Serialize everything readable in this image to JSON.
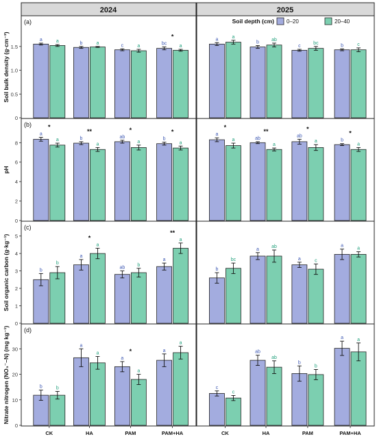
{
  "colors": {
    "s0_20": "#a3acdf",
    "s20_40": "#7ccfb0",
    "label_s0_20": "#3b56b2",
    "label_s20_40": "#1e9e7a",
    "strip_bg": "#d9d9d9",
    "panel_border": "#222222"
  },
  "columns": [
    "2024",
    "2025"
  ],
  "legend": {
    "title": "Soil depth (cm)",
    "items": [
      "0–20",
      "20–40"
    ]
  },
  "categories": [
    "CK",
    "HA",
    "PAM",
    "PAM+HA"
  ],
  "chart_data": [
    {
      "type": "bar",
      "panel": "(a)",
      "ylabel": "Soil bulk density (g·cm⁻³)",
      "ylim": [
        0,
        1.8
      ],
      "yticks": [
        0,
        0.5,
        1.0,
        1.5
      ],
      "ytick_labels": [
        "0",
        "0.5",
        "1.0",
        "1.5"
      ],
      "years": [
        {
          "year": "2024",
          "series": [
            {
              "name": "0–20",
              "values": [
                1.55,
                1.48,
                1.43,
                1.46
              ],
              "errors": [
                0.02,
                0.02,
                0.02,
                0.03
              ],
              "letters": [
                "a",
                "b",
                "c",
                "bc"
              ]
            },
            {
              "name": "20–40",
              "values": [
                1.52,
                1.49,
                1.41,
                1.42
              ],
              "errors": [
                0.02,
                0.01,
                0.03,
                0.02
              ],
              "letters": [
                "a",
                "a",
                "a",
                "a"
              ]
            }
          ],
          "stars": [
            "",
            "",
            "",
            "*"
          ]
        },
        {
          "year": "2025",
          "series": [
            {
              "name": "0–20",
              "values": [
                1.55,
                1.49,
                1.42,
                1.43
              ],
              "errors": [
                0.03,
                0.03,
                0.02,
                0.02
              ],
              "letters": [
                "a",
                "b",
                "c",
                "b"
              ]
            },
            {
              "name": "20–40",
              "values": [
                1.59,
                1.53,
                1.46,
                1.43
              ],
              "errors": [
                0.04,
                0.04,
                0.04,
                0.04
              ],
              "letters": [
                "a",
                "ab",
                "bc",
                "c"
              ]
            }
          ],
          "stars": [
            "",
            "",
            "",
            ""
          ]
        }
      ]
    },
    {
      "type": "bar",
      "panel": "(b)",
      "ylabel": "pH",
      "ylim": [
        0,
        9.5
      ],
      "yticks": [
        0,
        2,
        4,
        6,
        8
      ],
      "ytick_labels": [
        "0",
        "2",
        "4",
        "6",
        "8"
      ],
      "years": [
        {
          "year": "2024",
          "series": [
            {
              "name": "0–20",
              "values": [
                8.35,
                7.95,
                8.1,
                7.9
              ],
              "errors": [
                0.2,
                0.15,
                0.15,
                0.15
              ],
              "letters": [
                "a",
                "b",
                "ab",
                "b"
              ]
            },
            {
              "name": "20–40",
              "values": [
                7.75,
                7.3,
                7.5,
                7.45
              ],
              "errors": [
                0.2,
                0.2,
                0.25,
                0.2
              ],
              "letters": [
                "a",
                "a",
                "a",
                "a"
              ]
            }
          ],
          "stars": [
            "*",
            "**",
            "*",
            "*"
          ]
        },
        {
          "year": "2025",
          "series": [
            {
              "name": "0–20",
              "values": [
                8.3,
                8.0,
                8.1,
                7.8
              ],
              "errors": [
                0.2,
                0.1,
                0.25,
                0.1
              ],
              "letters": [
                "a",
                "ab",
                "ab",
                "b"
              ]
            },
            {
              "name": "20–40",
              "values": [
                7.7,
                7.3,
                7.5,
                7.3
              ],
              "errors": [
                0.25,
                0.15,
                0.3,
                0.2
              ],
              "letters": [
                "a",
                "a",
                "a",
                "a"
              ]
            }
          ],
          "stars": [
            "*",
            "**",
            "*",
            "*"
          ]
        }
      ]
    },
    {
      "type": "bar",
      "panel": "(c)",
      "ylabel": "Soil organic carbon (g·kg⁻¹)",
      "ylim": [
        0,
        5.3
      ],
      "yticks": [
        0,
        1,
        2,
        3,
        4,
        5
      ],
      "ytick_labels": [
        "0",
        "1",
        "2",
        "3",
        "4",
        "5"
      ],
      "years": [
        {
          "year": "2024",
          "series": [
            {
              "name": "0–20",
              "values": [
                2.5,
                3.35,
                2.8,
                3.25
              ],
              "errors": [
                0.35,
                0.3,
                0.2,
                0.2
              ],
              "letters": [
                "b",
                "a",
                "ab",
                "a"
              ]
            },
            {
              "name": "20–40",
              "values": [
                2.9,
                4.0,
                2.9,
                4.3
              ],
              "errors": [
                0.35,
                0.3,
                0.25,
                0.3
              ],
              "letters": [
                "b",
                "a",
                "b",
                "a"
              ]
            }
          ],
          "stars": [
            "",
            "*",
            "",
            "**"
          ]
        },
        {
          "year": "2025",
          "series": [
            {
              "name": "0–20",
              "values": [
                2.6,
                3.85,
                3.35,
                3.95
              ],
              "errors": [
                0.3,
                0.2,
                0.15,
                0.3
              ],
              "letters": [
                "b",
                "a",
                "a",
                "a"
              ]
            },
            {
              "name": "20–40",
              "values": [
                3.15,
                3.85,
                3.1,
                3.95
              ],
              "errors": [
                0.3,
                0.35,
                0.3,
                0.15
              ],
              "letters": [
                "bc",
                "ab",
                "c",
                "a"
              ]
            }
          ],
          "stars": [
            "",
            "",
            "",
            ""
          ]
        }
      ]
    },
    {
      "type": "bar",
      "panel": "(d)",
      "ylabel": "Nitrate nitrogen (NO₃⁻–N) (mg kg⁻¹)",
      "ylim": [
        0,
        36
      ],
      "yticks": [
        0,
        10,
        20,
        30
      ],
      "ytick_labels": [
        "0",
        "10",
        "20",
        "30"
      ],
      "years": [
        {
          "year": "2024",
          "series": [
            {
              "name": "0–20",
              "values": [
                11.8,
                26.5,
                23.0,
                25.5
              ],
              "errors": [
                2.0,
                3.5,
                2.0,
                2.5
              ],
              "letters": [
                "b",
                "a",
                "a",
                "a"
              ]
            },
            {
              "name": "20–40",
              "values": [
                11.8,
                24.5,
                18.0,
                28.5
              ],
              "errors": [
                1.5,
                2.5,
                2.0,
                2.5
              ],
              "letters": [
                "b",
                "a",
                "a",
                "a"
              ]
            }
          ],
          "stars": [
            "",
            "",
            "*",
            ""
          ]
        },
        {
          "year": "2025",
          "series": [
            {
              "name": "0–20",
              "values": [
                12.5,
                25.5,
                20.3,
                30.2
              ],
              "errors": [
                1.0,
                2.0,
                3.0,
                2.8
              ],
              "letters": [
                "c",
                "ab",
                "b",
                "a"
              ]
            },
            {
              "name": "20–40",
              "values": [
                10.7,
                22.8,
                19.9,
                28.8
              ],
              "errors": [
                1.0,
                2.5,
                2.0,
                3.5
              ],
              "letters": [
                "c",
                "ab",
                "b",
                "a"
              ]
            }
          ],
          "stars": [
            "",
            "",
            "",
            ""
          ]
        }
      ]
    }
  ]
}
